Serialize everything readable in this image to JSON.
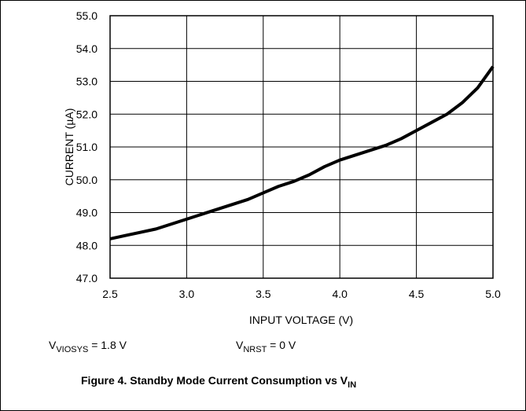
{
  "chart_data": {
    "type": "line",
    "xlabel": "INPUT VOLTAGE (V)",
    "ylabel": "CURRENT (µA)",
    "x": [
      2.5,
      2.6,
      2.7,
      2.8,
      2.9,
      3.0,
      3.1,
      3.2,
      3.3,
      3.4,
      3.5,
      3.6,
      3.7,
      3.8,
      3.9,
      4.0,
      4.1,
      4.2,
      4.3,
      4.4,
      4.5,
      4.6,
      4.7,
      4.8,
      4.9,
      5.0
    ],
    "series": [
      {
        "color": "#000000",
        "values": [
          48.2,
          48.3,
          48.4,
          48.5,
          48.65,
          48.8,
          48.95,
          49.1,
          49.25,
          49.4,
          49.6,
          49.8,
          49.95,
          50.15,
          50.4,
          50.6,
          50.75,
          50.9,
          51.05,
          51.25,
          51.5,
          51.75,
          52.0,
          52.35,
          52.8,
          53.45
        ]
      }
    ],
    "xlim": [
      2.5,
      5.0
    ],
    "xticks": [
      {
        "value": 2.5,
        "label": "2.5"
      },
      {
        "value": 3,
        "label": "3.0"
      },
      {
        "value": 3.5,
        "label": "3.5"
      },
      {
        "value": 4,
        "label": "4.0"
      },
      {
        "value": 4.5,
        "label": "4.5"
      },
      {
        "value": 5,
        "label": "5.0"
      }
    ],
    "ylim": [
      47,
      55
    ],
    "yticks": [
      {
        "value": 47,
        "label": "47.0"
      },
      {
        "value": 48,
        "label": "48.0"
      },
      {
        "value": 49,
        "label": "49.0"
      },
      {
        "value": 50,
        "label": "50.0"
      },
      {
        "value": 51,
        "label": "51.0"
      },
      {
        "value": 52,
        "label": "52.0"
      },
      {
        "value": 53,
        "label": "53.0"
      },
      {
        "value": 54,
        "label": "54.0"
      },
      {
        "value": 55,
        "label": "55.0"
      }
    ],
    "grid": true,
    "annotations": [
      {
        "main": "V",
        "sub": "VIOSYS",
        "rest": " = 1.8 V"
      },
      {
        "main": "V",
        "sub": "NRST",
        "rest": " = 0 V"
      }
    ],
    "title": {
      "main": "Figure 4. Standby Mode Current Consumption vs V",
      "sub": "IN"
    }
  }
}
